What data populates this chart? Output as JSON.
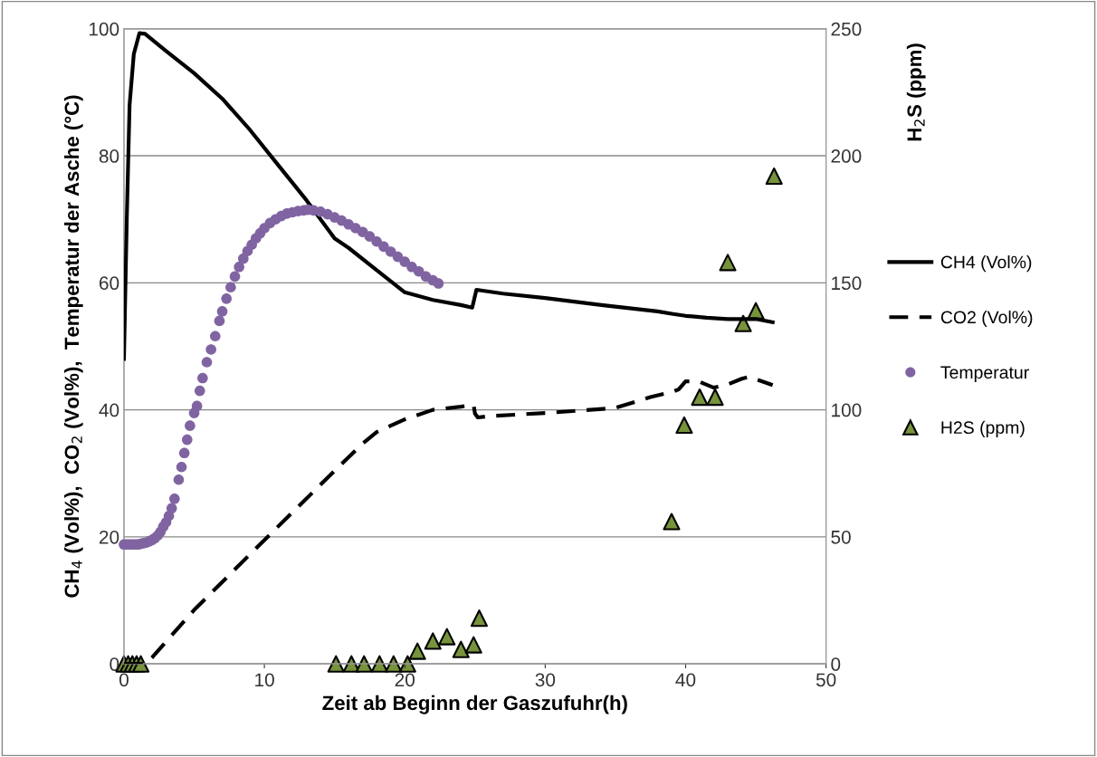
{
  "chart_data": {
    "type": "line",
    "xlabel": "Zeit ab Beginn der Gaszufuhr(h)",
    "ylabel": "CH$_{4}$ (Vol%),  CO$_{2}$ (Vol%),  Temperatur der Asche (°C)",
    "y2label": "H$_{2}$S (ppm)",
    "xlim": [
      0,
      50
    ],
    "xticks": [
      0,
      10,
      20,
      30,
      40,
      50
    ],
    "ylim": [
      0,
      100
    ],
    "yticks": [
      0,
      20,
      40,
      60,
      80,
      100
    ],
    "y2lim": [
      0,
      250
    ],
    "y2ticks": [
      0,
      50,
      100,
      150,
      200,
      250
    ],
    "grid": "y",
    "legend": "right",
    "series": [
      {
        "name": "CH4 (Vol%)",
        "line_style": "solid",
        "marker": "none",
        "color": "#000000",
        "x": [
          0,
          0.2,
          0.4,
          0.7,
          1.1,
          1.5,
          3,
          5,
          7,
          9,
          11,
          13,
          15,
          16,
          18,
          20,
          22,
          24,
          24.8,
          24.9,
          25.1,
          27,
          30,
          34,
          38,
          39.1,
          40,
          41.5,
          43,
          45,
          46.2
        ],
        "values": [
          48,
          70,
          88,
          96,
          99.3,
          99.2,
          96.5,
          93,
          89,
          84,
          78.5,
          73,
          67,
          65.5,
          62,
          58.5,
          57.3,
          56.5,
          56.1,
          57,
          58.9,
          58.3,
          57.6,
          56.5,
          55.5,
          55.1,
          54.8,
          54.5,
          54.3,
          54.3,
          53.8
        ]
      },
      {
        "name": "CO2 (Vol%)",
        "line_style": "dashed",
        "marker": "none",
        "color": "#000000",
        "x": [
          0,
          1.5,
          2,
          5,
          10,
          15,
          17,
          18,
          20,
          22,
          24,
          24.9,
          25,
          25.2,
          26,
          30,
          35,
          37.5,
          39,
          39.5,
          40,
          41,
          42,
          43,
          44,
          44.5,
          46.2
        ],
        "values": [
          0,
          0,
          1,
          8.5,
          19.5,
          30.4,
          34.7,
          36.5,
          38.5,
          40,
          40.5,
          40.8,
          39.4,
          38.8,
          39,
          39.5,
          40.3,
          42,
          42.8,
          43.2,
          44.5,
          44.4,
          43.5,
          44,
          44.9,
          45.2,
          43.9
        ]
      },
      {
        "name": "Temperatur",
        "type": "scatter",
        "marker": "circle",
        "color": "#8064a2",
        "x": [
          0,
          0.2,
          0.4,
          0.6,
          0.8,
          1.0,
          1.2,
          1.4,
          1.6,
          1.8,
          2.0,
          2.2,
          2.4,
          2.6,
          2.8,
          3.0,
          3.2,
          3.4,
          3.6,
          3.9,
          4.1,
          4.3,
          4.5,
          4.7,
          5.0,
          5.2,
          5.4,
          5.6,
          5.9,
          6.2,
          6.5,
          6.8,
          7.0,
          7.3,
          7.6,
          7.9,
          8.2,
          8.5,
          8.8,
          9.1,
          9.4,
          9.7,
          10.0,
          10.4,
          10.8,
          11.2,
          11.6,
          12.0,
          12.4,
          12.8,
          13.1,
          13.5,
          14.0,
          14.5,
          15.0,
          15.5,
          16.0,
          16.5,
          17.0,
          17.5,
          18.0,
          18.5,
          19.0,
          19.5,
          20.0,
          20.5,
          21.0,
          21.5,
          22.0,
          22.4
        ],
        "values": [
          18.8,
          18.8,
          18.8,
          18.8,
          18.8,
          18.8,
          18.9,
          19.0,
          19.1,
          19.3,
          19.5,
          19.8,
          20.2,
          20.8,
          21.6,
          22.3,
          23.3,
          24.5,
          26.0,
          29.0,
          31.0,
          33.2,
          35.3,
          37.5,
          39.5,
          40.6,
          43.0,
          45.0,
          47.5,
          49.5,
          51.6,
          54.0,
          55.5,
          57.5,
          59.3,
          61.0,
          62.5,
          63.8,
          65.0,
          66.0,
          67.0,
          67.8,
          68.6,
          69.4,
          70.0,
          70.5,
          70.9,
          71.1,
          71.3,
          71.4,
          71.5,
          71.4,
          71.2,
          70.8,
          70.3,
          69.8,
          69.2,
          68.6,
          68.0,
          67.3,
          66.5,
          65.7,
          64.9,
          64.1,
          63.3,
          62.5,
          61.8,
          61.0,
          60.4,
          59.9
        ]
      },
      {
        "name": "H2S (ppm)",
        "type": "scatter",
        "axis": "y2",
        "marker": "triangle",
        "color": "#77933c",
        "x": [
          0,
          0.3,
          0.6,
          0.9,
          1.2,
          15.1,
          16.2,
          17.1,
          18.2,
          19.2,
          20.2,
          20.9,
          22.0,
          23.0,
          24.0,
          24.9,
          25.3,
          39.0,
          39.9,
          41.0,
          42.1,
          43.0,
          44.1,
          45.0,
          46.3
        ],
        "values": [
          0,
          0,
          0,
          0,
          0,
          0,
          0,
          0,
          0,
          0,
          0,
          5,
          9,
          10.7,
          5.7,
          7.5,
          18,
          56,
          94,
          105,
          105,
          158,
          134,
          139,
          192
        ]
      }
    ]
  }
}
